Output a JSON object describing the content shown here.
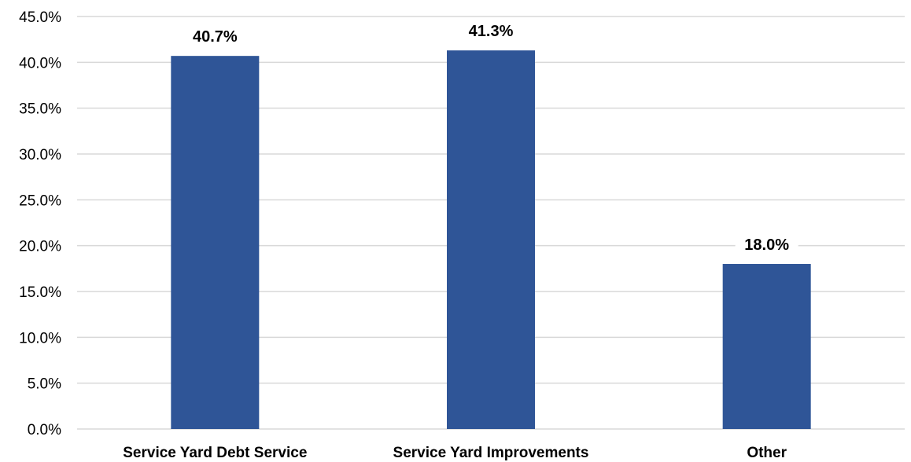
{
  "chart_data": {
    "type": "bar",
    "categories": [
      "Service Yard Debt Service",
      "Service Yard Improvements",
      "Other"
    ],
    "values": [
      40.7,
      41.3,
      18.0
    ],
    "data_labels": [
      "40.7%",
      "41.3%",
      "18.0%"
    ],
    "title": "",
    "xlabel": "",
    "ylabel": "",
    "ylim": [
      0,
      45
    ],
    "yticks": [
      0,
      5,
      10,
      15,
      20,
      25,
      30,
      35,
      40,
      45
    ],
    "ytick_labels": [
      "0.0%",
      "5.0%",
      "10.0%",
      "15.0%",
      "20.0%",
      "25.0%",
      "30.0%",
      "35.0%",
      "40.0%",
      "45.0%"
    ],
    "grid": true,
    "legend": "none",
    "bar_color": "#2f5597",
    "grid_color": "#d9d9d9"
  }
}
